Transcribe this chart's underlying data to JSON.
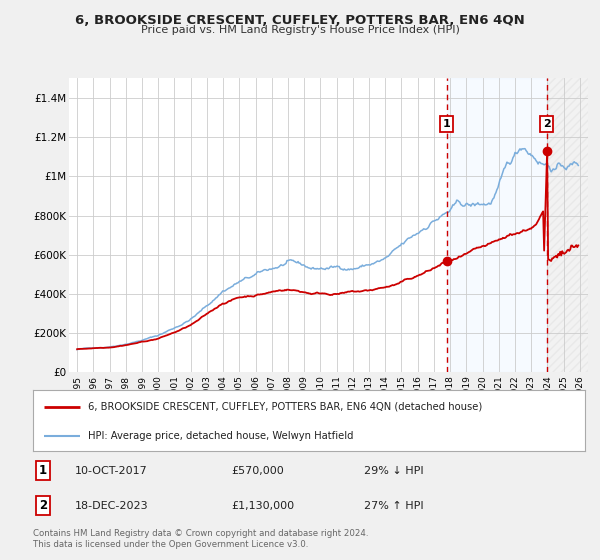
{
  "title": "6, BROOKSIDE CRESCENT, CUFFLEY, POTTERS BAR, EN6 4QN",
  "subtitle": "Price paid vs. HM Land Registry's House Price Index (HPI)",
  "xlim": [
    1994.5,
    2026.5
  ],
  "ylim": [
    0,
    1500000
  ],
  "yticks": [
    0,
    200000,
    400000,
    600000,
    800000,
    1000000,
    1200000,
    1400000
  ],
  "ytick_labels": [
    "£0",
    "£200K",
    "£400K",
    "£600K",
    "£800K",
    "£1M",
    "£1.2M",
    "£1.4M"
  ],
  "xticks": [
    1995,
    1996,
    1997,
    1998,
    1999,
    2000,
    2001,
    2002,
    2003,
    2004,
    2005,
    2006,
    2007,
    2008,
    2009,
    2010,
    2011,
    2012,
    2013,
    2014,
    2015,
    2016,
    2017,
    2018,
    2019,
    2020,
    2021,
    2022,
    2023,
    2024,
    2025,
    2026
  ],
  "marker1_x": 2017.78,
  "marker1_y": 570000,
  "marker2_x": 2023.96,
  "marker2_y": 1130000,
  "marker1_date": "10-OCT-2017",
  "marker1_price": "£570,000",
  "marker1_hpi": "29% ↓ HPI",
  "marker2_date": "18-DEC-2023",
  "marker2_price": "£1,130,000",
  "marker2_hpi": "27% ↑ HPI",
  "legend_label_red": "6, BROOKSIDE CRESCENT, CUFFLEY, POTTERS BAR, EN6 4QN (detached house)",
  "legend_label_blue": "HPI: Average price, detached house, Welwyn Hatfield",
  "footer1": "Contains HM Land Registry data © Crown copyright and database right 2024.",
  "footer2": "This data is licensed under the Open Government Licence v3.0.",
  "red_color": "#cc0000",
  "blue_color": "#7aaddc",
  "bg_color": "#f0f0f0",
  "plot_bg_color": "#ffffff",
  "grid_color": "#cccccc",
  "shade_color": "#ddeeff"
}
